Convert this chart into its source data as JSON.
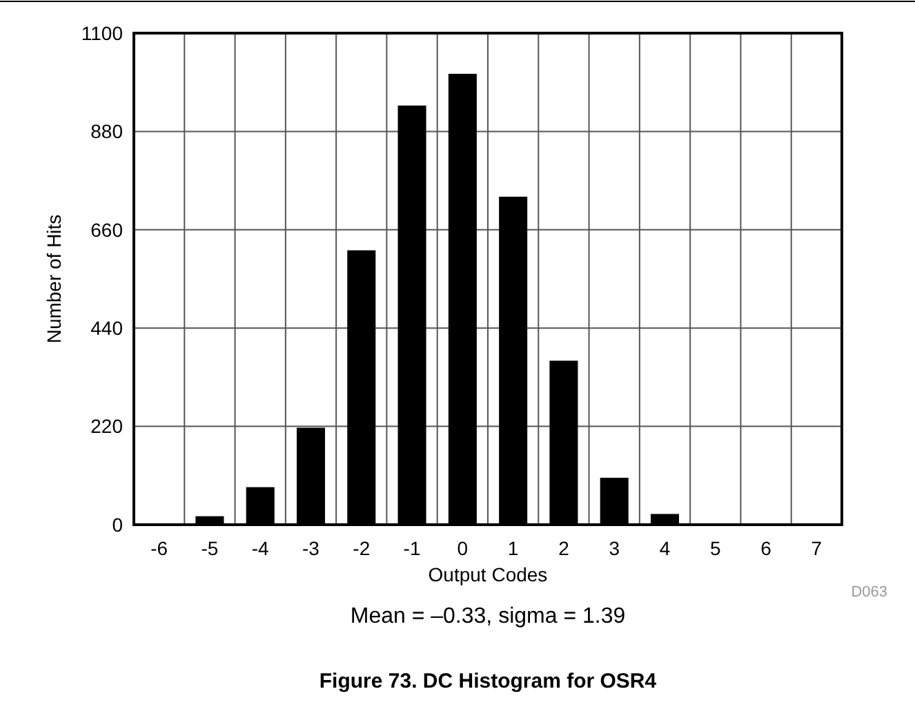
{
  "chart_data": {
    "type": "bar",
    "title": "Figure 73. DC Histogram for OSR4",
    "xlabel": "Output Codes",
    "ylabel": "Number of Hits",
    "categories": [
      "-6",
      "-5",
      "-4",
      "-3",
      "-2",
      "-1",
      "0",
      "1",
      "2",
      "3",
      "4",
      "5",
      "6",
      "7"
    ],
    "values": [
      3,
      19,
      84,
      217,
      614,
      938,
      1009,
      734,
      367,
      105,
      24,
      2,
      2,
      0
    ],
    "color": "#000000",
    "ylim": [
      0,
      1100
    ],
    "yticks": [
      0,
      220,
      440,
      660,
      880,
      1100
    ],
    "grid": true,
    "annotations": [
      "Mean = –0.33, sigma = 1.39",
      "D063"
    ]
  }
}
